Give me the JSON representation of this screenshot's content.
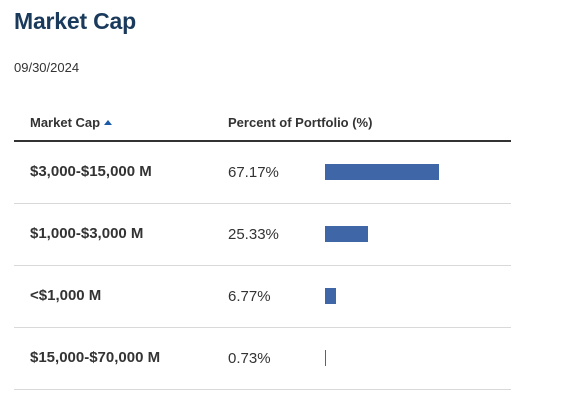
{
  "header": {
    "title": "Market Cap",
    "date": "09/30/2024"
  },
  "table": {
    "columns": {
      "market_cap": "Market Cap",
      "percent": "Percent of Portfolio (%)"
    },
    "sort": {
      "column": "market_cap",
      "direction": "ascending",
      "icon": "sort-up-icon"
    },
    "rows": [
      {
        "label": "$3,000-$15,000 M",
        "percent": 67.17,
        "percent_text": "67.17%"
      },
      {
        "label": "$1,000-$3,000 M",
        "percent": 25.33,
        "percent_text": "25.33%"
      },
      {
        "label": "<$1,000 M",
        "percent": 6.77,
        "percent_text": "6.77%"
      },
      {
        "label": "$15,000-$70,000 M",
        "percent": 0.73,
        "percent_text": "0.73%"
      }
    ]
  },
  "colors": {
    "title": "#1a3a5c",
    "bar": "#3f66a6",
    "sort_icon": "#1a5aa8"
  }
}
